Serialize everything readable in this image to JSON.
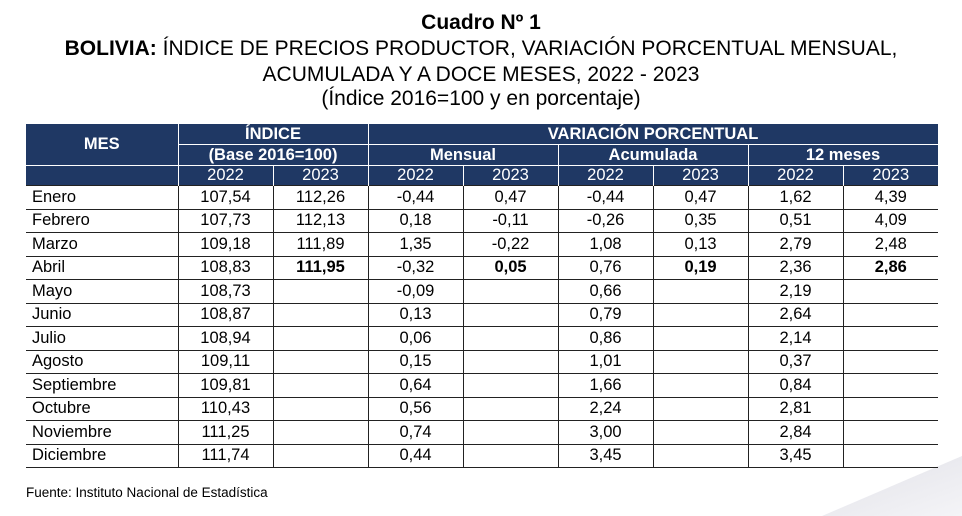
{
  "title": {
    "line1": "Cuadro Nº 1",
    "line2_bold": "BOLIVIA:",
    "line2_rest": " ÍNDICE DE PRECIOS PRODUCTOR, VARIACIÓN PORCENTUAL MENSUAL,",
    "line3": "ACUMULADA Y A DOCE MESES, 2022 - 2023",
    "line4": "(Índice 2016=100 y en porcentaje)"
  },
  "header": {
    "mes": "MES",
    "indice": "ÍNDICE",
    "indice_base": "(Base 2016=100)",
    "variacion": "VARIACIÓN PORCENTUAL",
    "mensual": "Mensual",
    "acumulada": "Acumulada",
    "doce_meses": "12 meses",
    "y2022": "2022",
    "y2023": "2023"
  },
  "rows": [
    {
      "mes": "Enero",
      "i22": "107,54",
      "i23": "112,26",
      "m22": "-0,44",
      "m23": "0,47",
      "a22": "-0,44",
      "a23": "0,47",
      "d22": "1,62",
      "d23": "4,39"
    },
    {
      "mes": "Febrero",
      "i22": "107,73",
      "i23": "112,13",
      "m22": "0,18",
      "m23": "-0,11",
      "a22": "-0,26",
      "a23": "0,35",
      "d22": "0,51",
      "d23": "4,09"
    },
    {
      "mes": "Marzo",
      "i22": "109,18",
      "i23": "111,89",
      "m22": "1,35",
      "m23": "-0,22",
      "a22": "1,08",
      "a23": "0,13",
      "d22": "2,79",
      "d23": "2,48"
    },
    {
      "mes": "Abril",
      "i22": "108,83",
      "i23": "111,95",
      "m22": "-0,32",
      "m23": "0,05",
      "a22": "0,76",
      "a23": "0,19",
      "d22": "2,36",
      "d23": "2,86"
    },
    {
      "mes": "Mayo",
      "i22": "108,73",
      "i23": "",
      "m22": "-0,09",
      "m23": "",
      "a22": "0,66",
      "a23": "",
      "d22": "2,19",
      "d23": ""
    },
    {
      "mes": "Junio",
      "i22": "108,87",
      "i23": "",
      "m22": "0,13",
      "m23": "",
      "a22": "0,79",
      "a23": "",
      "d22": "2,64",
      "d23": ""
    },
    {
      "mes": "Julio",
      "i22": "108,94",
      "i23": "",
      "m22": "0,06",
      "m23": "",
      "a22": "0,86",
      "a23": "",
      "d22": "2,14",
      "d23": ""
    },
    {
      "mes": "Agosto",
      "i22": "109,11",
      "i23": "",
      "m22": "0,15",
      "m23": "",
      "a22": "1,01",
      "a23": "",
      "d22": "0,37",
      "d23": ""
    },
    {
      "mes": "Septiembre",
      "i22": "109,81",
      "i23": "",
      "m22": "0,64",
      "m23": "",
      "a22": "1,66",
      "a23": "",
      "d22": "0,84",
      "d23": ""
    },
    {
      "mes": "Octubre",
      "i22": "110,43",
      "i23": "",
      "m22": "0,56",
      "m23": "",
      "a22": "2,24",
      "a23": "",
      "d22": "2,81",
      "d23": ""
    },
    {
      "mes": "Noviembre",
      "i22": "111,25",
      "i23": "",
      "m22": "0,74",
      "m23": "",
      "a22": "3,00",
      "a23": "",
      "d22": "2,84",
      "d23": ""
    },
    {
      "mes": "Diciembre",
      "i22": "111,74",
      "i23": "",
      "m22": "0,44",
      "m23": "",
      "a22": "3,45",
      "a23": "",
      "d22": "3,45",
      "d23": ""
    }
  ],
  "bold_row_index": 3,
  "source": "Fuente: Instituto Nacional de Estadística",
  "colors": {
    "header_bg": "#1f3864",
    "header_text": "#ffffff"
  }
}
